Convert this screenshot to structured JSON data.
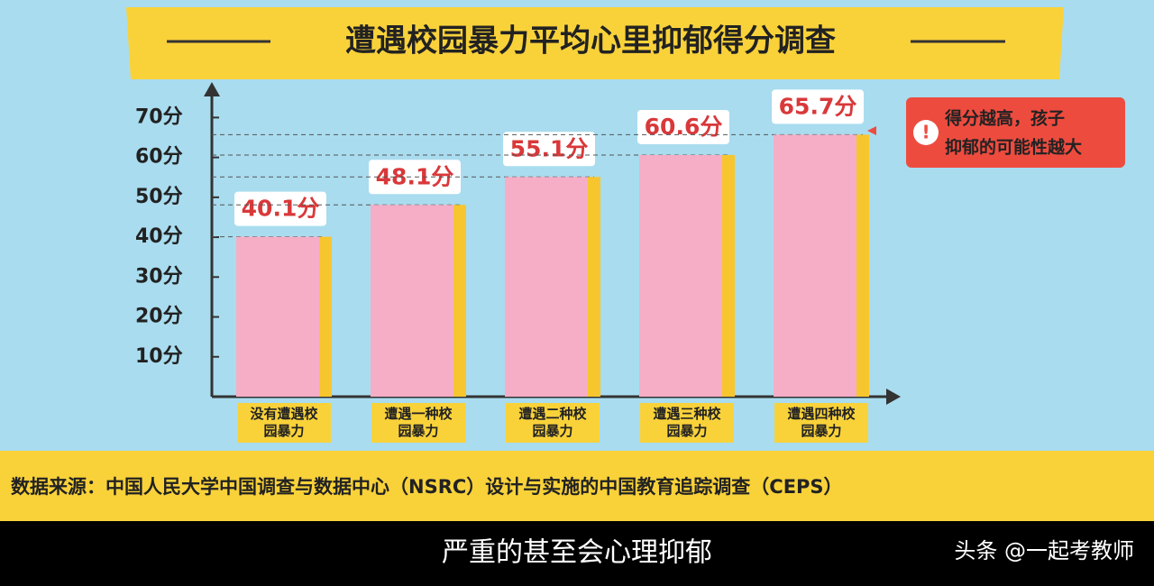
{
  "chart_data": {
    "type": "bar",
    "title": "遭遇校园暴力平均心里抑郁得分调查",
    "categories": [
      "没有遭遇校园暴力",
      "遭遇一种校园暴力",
      "遭遇二种校园暴力",
      "遭遇三种校园暴力",
      "遭遇四种校园暴力"
    ],
    "values": [
      40.1,
      48.1,
      55.1,
      60.6,
      65.7
    ],
    "value_labels": [
      "40.1分",
      "48.1分",
      "55.1分",
      "60.6分",
      "65.7分"
    ],
    "color": "#f5aec6",
    "edge_color": "#f7c62e",
    "ylim": [
      0,
      78
    ],
    "yticks": [
      {
        "value": 10,
        "label": "10分"
      },
      {
        "value": 20,
        "label": "20分"
      },
      {
        "value": 30,
        "label": "30分"
      },
      {
        "value": 40,
        "label": "40分"
      },
      {
        "value": 50,
        "label": "50分"
      },
      {
        "value": 60,
        "label": "60分"
      },
      {
        "value": 70,
        "label": "70分"
      }
    ],
    "note": [
      "得分越高，孩子",
      "抑郁的可能性越大"
    ],
    "source": "数据来源：中国人民大学中国调查与数据中心（NSRC）设计与实施的中国教育追踪调查（CEPS）"
  },
  "caption": "严重的甚至会心理抑郁",
  "watermark": "头条 @一起考教师"
}
